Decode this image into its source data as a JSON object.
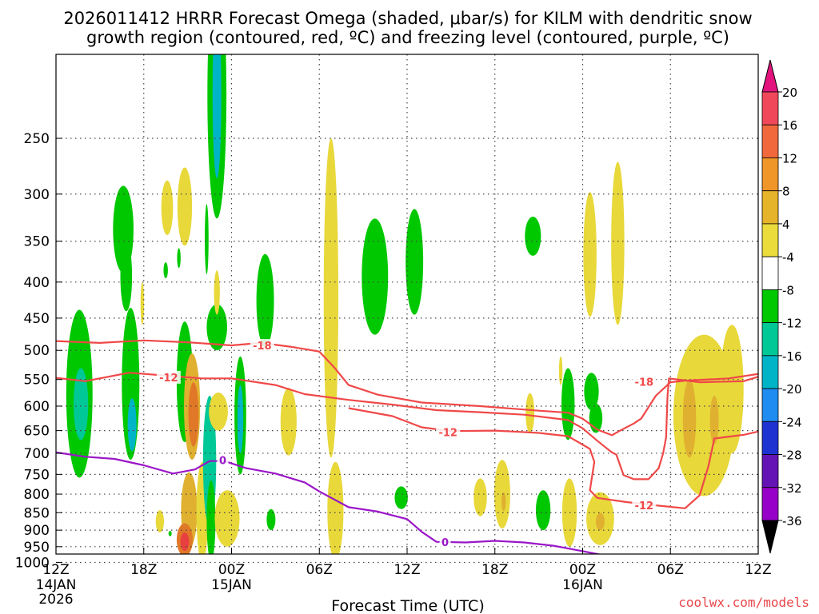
{
  "chart_data": {
    "type": "contour-timeheight",
    "title_line1": "2026011412 HRRR Forecast Omega (shaded, μbar/s) for KILM with dendritic snow",
    "title_line2": "growth region (contoured, red, ºC) and freezing level (contoured, purple, ºC)",
    "xlabel": "Forecast Time (UTC)",
    "credit": "coolwx.com/models",
    "x_range_hours": [
      0,
      48
    ],
    "x_ticks": [
      {
        "h": 0,
        "label": "12Z",
        "sub1": "14JAN",
        "sub2": "2026"
      },
      {
        "h": 6,
        "label": "18Z",
        "sub1": "",
        "sub2": ""
      },
      {
        "h": 12,
        "label": "00Z",
        "sub1": "15JAN",
        "sub2": ""
      },
      {
        "h": 18,
        "label": "06Z",
        "sub1": "",
        "sub2": ""
      },
      {
        "h": 24,
        "label": "12Z",
        "sub1": "",
        "sub2": ""
      },
      {
        "h": 30,
        "label": "18Z",
        "sub1": "",
        "sub2": ""
      },
      {
        "h": 36,
        "label": "00Z",
        "sub1": "16JAN",
        "sub2": ""
      },
      {
        "h": 42,
        "label": "06Z",
        "sub1": "",
        "sub2": ""
      },
      {
        "h": 48,
        "label": "12Z",
        "sub1": "",
        "sub2": ""
      }
    ],
    "y_ticks": [
      "250",
      "300",
      "350",
      "400",
      "450",
      "500",
      "550",
      "600",
      "650",
      "700",
      "750",
      "800",
      "850",
      "900",
      "950",
      "1000"
    ],
    "y_range_hpa": [
      200,
      1010
    ],
    "colorbar_labels": [
      "20",
      "16",
      "12",
      "8",
      "4",
      "-4",
      "-8",
      "-12",
      "-16",
      "-20",
      "-24",
      "-28",
      "-32",
      "-36"
    ],
    "colorbar_colors": [
      "#f0485a",
      "#f0683c",
      "#f09628",
      "#e6b42a",
      "#ebdc3c",
      "#ffffff",
      "#00c800",
      "#00c896",
      "#00b4c8",
      "#1e8cf0",
      "#1e32d2",
      "#6414b4",
      "#9600c8",
      "#a0a0a0"
    ],
    "colors": {
      "pos_weak": "#e8d83a",
      "pos_mid": "#e0b030",
      "pos_strong": "#e07828",
      "pos_max": "#e84040",
      "neg_weak": "#00c800",
      "neg_mid": "#00c896",
      "neg_strong": "#00b4c8",
      "dgz": "#f04848",
      "freezing": "#9a16c8",
      "ground": "#a0522d"
    },
    "series": [
      {
        "name": "dgz_-12_upper",
        "color_key": "dgz",
        "points": [
          [
            0,
            547
          ],
          [
            2,
            553
          ],
          [
            5,
            538
          ],
          [
            8,
            544
          ],
          [
            10,
            548
          ],
          [
            12,
            548
          ],
          [
            15,
            560
          ],
          [
            17,
            577
          ],
          [
            20,
            588
          ],
          [
            23,
            597
          ],
          [
            26,
            608
          ],
          [
            29,
            612
          ],
          [
            32,
            617
          ],
          [
            35,
            628
          ],
          [
            36,
            645
          ],
          [
            37,
            672
          ],
          [
            38,
            698
          ],
          [
            38.3,
            703
          ],
          [
            38.8,
            752
          ],
          [
            39.5,
            762
          ],
          [
            40.5,
            762
          ],
          [
            41.2,
            735
          ],
          [
            41.5,
            700
          ],
          [
            41.7,
            665
          ],
          [
            41.8,
            580
          ],
          [
            41.9,
            548
          ],
          [
            44,
            555
          ],
          [
            47,
            553
          ],
          [
            48,
            545
          ]
        ],
        "labels": [
          {
            "h": 7.7,
            "p": 546,
            "text": "-12"
          }
        ]
      },
      {
        "name": "dgz_-12_lower",
        "color_key": "dgz",
        "points": [
          [
            20,
            604
          ],
          [
            23,
            620
          ],
          [
            25,
            643
          ],
          [
            27,
            651
          ],
          [
            30,
            650
          ],
          [
            33,
            655
          ],
          [
            35,
            662
          ],
          [
            36.5,
            690
          ],
          [
            36.8,
            720
          ],
          [
            36.5,
            790
          ],
          [
            37,
            810
          ],
          [
            39,
            821
          ],
          [
            41,
            830
          ],
          [
            43,
            838
          ],
          [
            44,
            803
          ],
          [
            44.6,
            730
          ],
          [
            45,
            667
          ],
          [
            47,
            659
          ],
          [
            48,
            652
          ]
        ],
        "labels": [
          {
            "h": 26.8,
            "p": 653,
            "text": "-12"
          },
          {
            "h": 40.2,
            "p": 830,
            "text": "-12"
          }
        ]
      },
      {
        "name": "dgz_-18",
        "color_key": "dgz",
        "points": [
          [
            0,
            485
          ],
          [
            3,
            488
          ],
          [
            6,
            484
          ],
          [
            9,
            487
          ],
          [
            12,
            492
          ],
          [
            14,
            488
          ],
          [
            16,
            494
          ],
          [
            18,
            502
          ],
          [
            19,
            528
          ],
          [
            20,
            560
          ],
          [
            22,
            578
          ],
          [
            25,
            593
          ],
          [
            29,
            600
          ],
          [
            33,
            609
          ],
          [
            35,
            613
          ],
          [
            36,
            625
          ],
          [
            37,
            648
          ],
          [
            38,
            660
          ],
          [
            38.5,
            651
          ],
          [
            39.5,
            635
          ],
          [
            40,
            625
          ],
          [
            41,
            580
          ],
          [
            42,
            555
          ],
          [
            43,
            552
          ],
          [
            46,
            548
          ],
          [
            48,
            540
          ]
        ],
        "labels": [
          {
            "h": 14.1,
            "p": 492,
            "text": "-18"
          },
          {
            "h": 40.2,
            "p": 554,
            "text": "-18"
          }
        ]
      },
      {
        "name": "freezing_0",
        "color_key": "freezing",
        "points": [
          [
            0,
            698
          ],
          [
            2,
            708
          ],
          [
            4,
            713
          ],
          [
            6,
            728
          ],
          [
            8,
            748
          ],
          [
            9.5,
            738
          ],
          [
            10.5,
            718
          ],
          [
            11.5,
            718
          ],
          [
            13,
            735
          ],
          [
            15,
            748
          ],
          [
            17,
            770
          ],
          [
            18,
            793
          ],
          [
            20,
            835
          ],
          [
            22,
            847
          ],
          [
            24,
            868
          ],
          [
            25,
            905
          ],
          [
            26,
            935
          ],
          [
            28,
            937
          ],
          [
            30,
            932
          ],
          [
            32,
            937
          ],
          [
            34,
            947
          ],
          [
            36,
            964
          ],
          [
            38,
            982
          ],
          [
            39.5,
            997
          ]
        ],
        "labels": [
          {
            "h": 11.4,
            "p": 716,
            "text": "0"
          },
          {
            "h": 26.6,
            "p": 936,
            "text": "0"
          }
        ]
      }
    ],
    "shaded_regions_omega": [
      {
        "h": 1.6,
        "p": 598,
        "rh": 0.9,
        "rp": 160,
        "v": -8
      },
      {
        "h": 1.7,
        "p": 600,
        "rh": 0.5,
        "rp": 70,
        "v": -10
      },
      {
        "h": 4.6,
        "p": 340,
        "rh": 0.7,
        "rp": 48,
        "v": -6
      },
      {
        "h": 4.8,
        "p": 395,
        "rh": 0.4,
        "rp": 45,
        "v": -6
      },
      {
        "h": 5.1,
        "p": 575,
        "rh": 0.6,
        "rp": 140,
        "v": -8
      },
      {
        "h": 5.2,
        "p": 640,
        "rh": 0.3,
        "rp": 55,
        "v": -14
      },
      {
        "h": 7.6,
        "p": 315,
        "rh": 0.4,
        "rp": 28,
        "v": 5
      },
      {
        "h": 8.8,
        "p": 315,
        "rh": 0.5,
        "rp": 40,
        "v": 5
      },
      {
        "h": 5.9,
        "p": 430,
        "rh": 0.12,
        "rp": 30,
        "v": 5
      },
      {
        "h": 7.1,
        "p": 875,
        "rh": 0.28,
        "rp": 32,
        "v": 5
      },
      {
        "h": 7.5,
        "p": 385,
        "rh": 0.15,
        "rp": 10,
        "v": -6
      },
      {
        "h": 8.4,
        "p": 370,
        "rh": 0.12,
        "rp": 12,
        "v": -6
      },
      {
        "h": 8.8,
        "p": 565,
        "rh": 0.55,
        "rp": 110,
        "v": -8
      },
      {
        "h": 9.3,
        "p": 610,
        "rh": 0.55,
        "rp": 105,
        "v": 8
      },
      {
        "h": 9.4,
        "p": 620,
        "rh": 0.35,
        "rp": 65,
        "v": 13
      },
      {
        "h": 9.1,
        "p": 850,
        "rh": 0.55,
        "rp": 105,
        "v": 8
      },
      {
        "h": 8.8,
        "p": 930,
        "rh": 0.55,
        "rp": 50,
        "v": 14
      },
      {
        "h": 8.8,
        "p": 935,
        "rh": 0.3,
        "rp": 28,
        "v": 19
      },
      {
        "h": 7.8,
        "p": 910,
        "rh": 0.05,
        "rp": 8,
        "v": -6
      },
      {
        "h": 10.0,
        "p": 860,
        "rh": 0.4,
        "rp": 140,
        "v": 5
      },
      {
        "h": 10.5,
        "p": 735,
        "rh": 0.45,
        "rp": 155,
        "v": -10
      },
      {
        "h": 10.6,
        "p": 880,
        "rh": 0.3,
        "rp": 115,
        "v": -8
      },
      {
        "h": 10.3,
        "p": 350,
        "rh": 0.13,
        "rp": 40,
        "v": -6
      },
      {
        "h": 11.0,
        "p": 465,
        "rh": 0.7,
        "rp": 35,
        "v": -8
      },
      {
        "h": 11.1,
        "p": 612,
        "rh": 0.65,
        "rp": 38,
        "v": 5
      },
      {
        "h": 11.0,
        "p": 235,
        "rh": 0.65,
        "rp": 90,
        "v": -8
      },
      {
        "h": 11.0,
        "p": 225,
        "rh": 0.3,
        "rp": 60,
        "v": -12
      },
      {
        "h": 11.0,
        "p": 415,
        "rh": 0.2,
        "rp": 30,
        "v": 5
      },
      {
        "h": 11.7,
        "p": 870,
        "rh": 0.85,
        "rp": 80,
        "v": 5
      },
      {
        "h": 12.6,
        "p": 630,
        "rh": 0.4,
        "rp": 120,
        "v": -8
      },
      {
        "h": 12.6,
        "p": 630,
        "rh": 0.2,
        "rp": 70,
        "v": -12
      },
      {
        "h": 14.3,
        "p": 430,
        "rh": 0.6,
        "rp": 65,
        "v": -8
      },
      {
        "h": 14.7,
        "p": 870,
        "rh": 0.3,
        "rp": 30,
        "v": -8
      },
      {
        "h": 15.9,
        "p": 635,
        "rh": 0.55,
        "rp": 70,
        "v": 5
      },
      {
        "h": 18.8,
        "p": 480,
        "rh": 0.5,
        "rp": 230,
        "v": 5
      },
      {
        "h": 18.6,
        "p": 460,
        "rh": 0.2,
        "rp": 120,
        "v": 5
      },
      {
        "h": 19.1,
        "p": 855,
        "rh": 0.55,
        "rp": 135,
        "v": 5
      },
      {
        "h": 21.8,
        "p": 400,
        "rh": 0.9,
        "rp": 75,
        "v": -8
      },
      {
        "h": 24.5,
        "p": 380,
        "rh": 0.6,
        "rp": 65,
        "v": -8
      },
      {
        "h": 23.6,
        "p": 810,
        "rh": 0.45,
        "rp": 30,
        "v": -8
      },
      {
        "h": 29.0,
        "p": 810,
        "rh": 0.45,
        "rp": 50,
        "v": 5
      },
      {
        "h": 30.5,
        "p": 805,
        "rh": 0.55,
        "rp": 90,
        "v": 5
      },
      {
        "h": 30.6,
        "p": 820,
        "rh": 0.15,
        "rp": 25,
        "v": 10
      },
      {
        "h": 32.6,
        "p": 345,
        "rh": 0.55,
        "rp": 22,
        "v": -8
      },
      {
        "h": 32.4,
        "p": 615,
        "rh": 0.3,
        "rp": 40,
        "v": 5
      },
      {
        "h": 33.3,
        "p": 845,
        "rh": 0.5,
        "rp": 55,
        "v": -8
      },
      {
        "h": 34.5,
        "p": 535,
        "rh": 0.12,
        "rp": 25,
        "v": 5
      },
      {
        "h": 35.0,
        "p": 600,
        "rh": 0.45,
        "rp": 70,
        "v": -8
      },
      {
        "h": 35.1,
        "p": 855,
        "rh": 0.5,
        "rp": 95,
        "v": 5
      },
      {
        "h": 36.5,
        "p": 373,
        "rh": 0.45,
        "rp": 75,
        "v": 5
      },
      {
        "h": 36.6,
        "p": 573,
        "rh": 0.5,
        "rp": 35,
        "v": -8
      },
      {
        "h": 36.9,
        "p": 625,
        "rh": 0.45,
        "rp": 30,
        "v": -8
      },
      {
        "h": 37.2,
        "p": 870,
        "rh": 0.95,
        "rp": 75,
        "v": 6
      },
      {
        "h": 37.2,
        "p": 875,
        "rh": 0.3,
        "rp": 25,
        "v": 10
      },
      {
        "h": 38.4,
        "p": 365,
        "rh": 0.45,
        "rp": 95,
        "v": 5
      },
      {
        "h": 44.3,
        "p": 640,
        "rh": 2.1,
        "rp": 165,
        "v": 5
      },
      {
        "h": 43.3,
        "p": 630,
        "rh": 0.45,
        "rp": 80,
        "v": 9
      },
      {
        "h": 45.0,
        "p": 630,
        "rh": 0.3,
        "rp": 50,
        "v": 9
      },
      {
        "h": 46.2,
        "p": 580,
        "rh": 0.8,
        "rp": 120,
        "v": 5
      }
    ]
  }
}
